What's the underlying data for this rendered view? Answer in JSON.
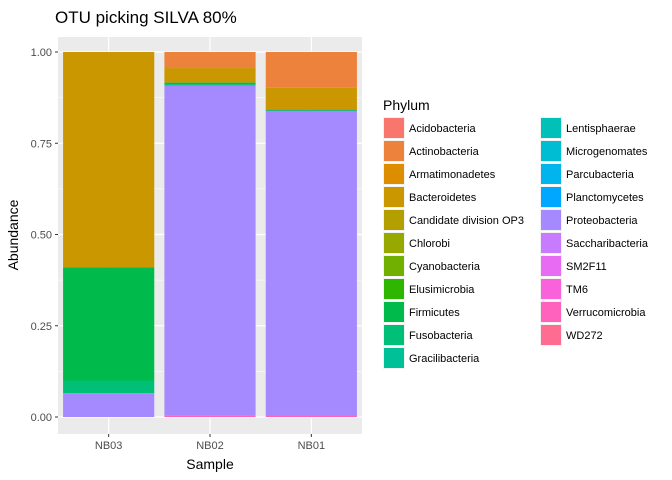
{
  "chart_data": {
    "type": "bar",
    "stacked": true,
    "title": "OTU picking  SILVA 80%",
    "xlabel": "Sample",
    "ylabel": "Abundance",
    "ylim": [
      0,
      1
    ],
    "yticks": [
      "0.00",
      "0.25",
      "0.50",
      "0.75",
      "1.00"
    ],
    "categories": [
      "NB03",
      "NB02",
      "NB01"
    ],
    "legend_title": "Phylum",
    "legend_position": "right",
    "grid": true,
    "series": [
      {
        "name": "Acidobacteria",
        "color": "#F8766D",
        "values": [
          0,
          0,
          0
        ]
      },
      {
        "name": "Actinobacteria",
        "color": "#EC823C",
        "values": [
          0,
          0.044,
          0.098
        ]
      },
      {
        "name": "Armatimonadetes",
        "color": "#DD8D00",
        "values": [
          0,
          0,
          0
        ]
      },
      {
        "name": "Bacteroidetes",
        "color": "#CA9700",
        "values": [
          0.59,
          0.04,
          0.06
        ]
      },
      {
        "name": "Candidate division OP3",
        "color": "#B3A000",
        "values": [
          0,
          0,
          0
        ]
      },
      {
        "name": "Chlorobi",
        "color": "#97A900",
        "values": [
          0,
          0,
          0
        ]
      },
      {
        "name": "Cyanobacteria",
        "color": "#71B000",
        "values": [
          0,
          0,
          0
        ]
      },
      {
        "name": "Elusimicrobia",
        "color": "#2FB600",
        "values": [
          0,
          0,
          0
        ]
      },
      {
        "name": "Firmicutes",
        "color": "#00BB4B",
        "values": [
          0.31,
          0.004,
          0.002
        ]
      },
      {
        "name": "Fusobacteria",
        "color": "#00BF76",
        "values": [
          0.035,
          0.004,
          0.001
        ]
      },
      {
        "name": "Gracilibacteria",
        "color": "#00C098",
        "values": [
          0,
          0,
          0
        ]
      },
      {
        "name": "Lentisphaerae",
        "color": "#00C0B7",
        "values": [
          0,
          0,
          0
        ]
      },
      {
        "name": "Microgenomates",
        "color": "#00BDD4",
        "values": [
          0,
          0,
          0
        ]
      },
      {
        "name": "Parcubacteria",
        "color": "#00B5EE",
        "values": [
          0,
          0,
          0
        ]
      },
      {
        "name": "Planctomycetes",
        "color": "#00A7FF",
        "values": [
          0,
          0,
          0
        ]
      },
      {
        "name": "Proteobacteria",
        "color": "#A58AFF",
        "values": [
          0.065,
          0.903,
          0.835
        ]
      },
      {
        "name": "Saccharibacteria",
        "color": "#C77CFF",
        "values": [
          0,
          0,
          0
        ]
      },
      {
        "name": "SM2F11",
        "color": "#E76BF3",
        "values": [
          0,
          0,
          0
        ]
      },
      {
        "name": "TM6",
        "color": "#FA62DB",
        "values": [
          0,
          0,
          0
        ]
      },
      {
        "name": "Verrucomicrobia",
        "color": "#FF62BC",
        "values": [
          0,
          0.005,
          0.004
        ]
      },
      {
        "name": "WD272",
        "color": "#FF6C91",
        "values": [
          0,
          0,
          0
        ]
      }
    ]
  }
}
